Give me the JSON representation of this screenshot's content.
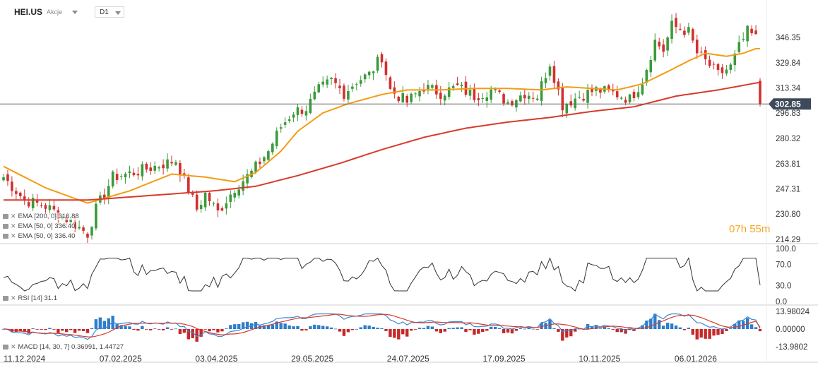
{
  "header": {
    "symbol": "HEI.US",
    "instrument_type": "Akcje",
    "timeframe": "D1"
  },
  "legend": {
    "ema200": "EMA [200, 0] 316.88",
    "ema50a": "EMA [50, 0] 336.40",
    "ema50b": "EMA [50, 0] 336.40",
    "rsi": "RSI [14] 31.1",
    "macd": "MACD [14, 30, 7] 0.36991, 1.44727"
  },
  "timer": {
    "hours": "07",
    "h": "h",
    "minutes": "55",
    "m": "m"
  },
  "current_price": "302.85",
  "colors": {
    "up": "#3a9b3a",
    "down": "#d32f2f",
    "ema50": "#f39c12",
    "ema200": "#d83a2b",
    "macd_line": "#3a87d4",
    "signal_line": "#d83a2b",
    "rsi_line": "#333333"
  },
  "chart_data": {
    "type": "candlestick",
    "price_axis": {
      "ticks": [
        "346.35",
        "329.84",
        "313.34",
        "296.83",
        "280.32",
        "263.81",
        "247.31",
        "230.80",
        "214.29"
      ],
      "ylim": [
        214.29,
        346.35
      ]
    },
    "x_labels": [
      "11.12.2024",
      "07.02.2025",
      "03.04.2025",
      "29.05.2025",
      "24.07.2025",
      "17.09.2025",
      "10.11.2025",
      "06.01.2026"
    ],
    "price_keypoints": [
      [
        0,
        255
      ],
      [
        5,
        240
      ],
      [
        10,
        236
      ],
      [
        16,
        226
      ],
      [
        20,
        218
      ],
      [
        22,
        234
      ],
      [
        26,
        255
      ],
      [
        31,
        258
      ],
      [
        36,
        262
      ],
      [
        41,
        266
      ],
      [
        46,
        234
      ],
      [
        48,
        244
      ],
      [
        51,
        232
      ],
      [
        55,
        248
      ],
      [
        59,
        258
      ],
      [
        63,
        272
      ],
      [
        66,
        288
      ],
      [
        69,
        298
      ],
      [
        72,
        300
      ],
      [
        75,
        312
      ],
      [
        78,
        318
      ],
      [
        81,
        310
      ],
      [
        84,
        318
      ],
      [
        87,
        322
      ],
      [
        90,
        334
      ],
      [
        92,
        312
      ],
      [
        96,
        304
      ],
      [
        100,
        314
      ],
      [
        104,
        310
      ],
      [
        108,
        314
      ],
      [
        112,
        308
      ],
      [
        116,
        312
      ],
      [
        120,
        304
      ],
      [
        124,
        310
      ],
      [
        127,
        308
      ],
      [
        130,
        330
      ],
      [
        133,
        302
      ],
      [
        137,
        308
      ],
      [
        141,
        312
      ],
      [
        145,
        310
      ],
      [
        149,
        306
      ],
      [
        152,
        318
      ],
      [
        155,
        344
      ],
      [
        157,
        338
      ],
      [
        159,
        354
      ],
      [
        163,
        350
      ],
      [
        165,
        336
      ],
      [
        168,
        328
      ],
      [
        170,
        322
      ],
      [
        173,
        327
      ],
      [
        175,
        340
      ],
      [
        177,
        350
      ],
      [
        179,
        346
      ],
      [
        180,
        302.85
      ]
    ],
    "ema50_keypoints": [
      [
        0,
        262
      ],
      [
        10,
        248
      ],
      [
        20,
        238
      ],
      [
        30,
        246
      ],
      [
        40,
        257
      ],
      [
        48,
        255
      ],
      [
        55,
        252
      ],
      [
        60,
        258
      ],
      [
        66,
        272
      ],
      [
        70,
        285
      ],
      [
        76,
        297
      ],
      [
        82,
        303
      ],
      [
        90,
        309
      ],
      [
        96,
        312
      ],
      [
        104,
        312
      ],
      [
        112,
        313
      ],
      [
        120,
        313
      ],
      [
        128,
        312
      ],
      [
        134,
        314
      ],
      [
        140,
        313
      ],
      [
        146,
        312
      ],
      [
        152,
        316
      ],
      [
        158,
        324
      ],
      [
        163,
        331
      ],
      [
        167,
        336
      ],
      [
        172,
        334
      ],
      [
        176,
        336
      ],
      [
        179,
        339
      ]
    ],
    "ema200_keypoints": [
      [
        0,
        240
      ],
      [
        10,
        240
      ],
      [
        20,
        240
      ],
      [
        30,
        242
      ],
      [
        40,
        244
      ],
      [
        50,
        246
      ],
      [
        60,
        249
      ],
      [
        70,
        256
      ],
      [
        80,
        264
      ],
      [
        90,
        273
      ],
      [
        100,
        281
      ],
      [
        110,
        287
      ],
      [
        120,
        291
      ],
      [
        130,
        294
      ],
      [
        140,
        298
      ],
      [
        150,
        301
      ],
      [
        160,
        308
      ],
      [
        170,
        312
      ],
      [
        180,
        317
      ]
    ],
    "rsi": {
      "ticks": [
        "100.0",
        "70.0",
        "30.0",
        "0.0"
      ],
      "ylim": [
        0,
        100
      ],
      "last": 31.1
    },
    "macd": {
      "ticks": [
        "13.98024",
        "0.00000",
        "-13.9802"
      ],
      "ylim": [
        -13.9802,
        13.98024
      ],
      "macd": 0.36991,
      "signal": 1.44727
    }
  }
}
